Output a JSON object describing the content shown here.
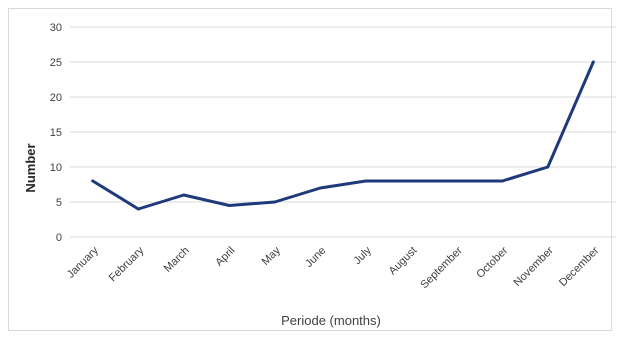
{
  "chart_data": {
    "type": "line",
    "title": "",
    "xlabel": "Periode (months)",
    "ylabel": "Number",
    "ylim": [
      0,
      30
    ],
    "yticks": [
      0,
      5,
      10,
      15,
      20,
      25,
      30
    ],
    "grid": true,
    "legend": "none",
    "categories": [
      "January",
      "February",
      "March",
      "April",
      "May",
      "June",
      "July",
      "August",
      "September",
      "October",
      "November",
      "December"
    ],
    "series": [
      {
        "color": "#1f3a7a",
        "values": [
          8,
          4,
          6,
          4.5,
          5,
          7,
          8,
          8,
          8,
          8,
          10,
          25
        ]
      }
    ]
  }
}
